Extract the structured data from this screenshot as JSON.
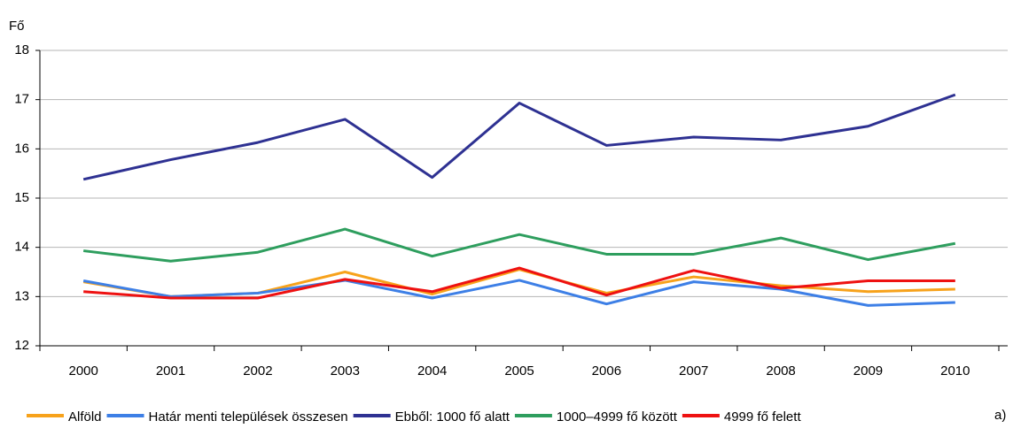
{
  "chart_data": {
    "type": "line",
    "y_label": "Fő",
    "note": "a)",
    "categories": [
      "2000",
      "2001",
      "2002",
      "2003",
      "2004",
      "2005",
      "2006",
      "2007",
      "2008",
      "2009",
      "2010"
    ],
    "series": [
      {
        "name": "Alföld",
        "color": "#f7a21b",
        "values": [
          13.3,
          13.0,
          13.07,
          13.5,
          13.05,
          13.55,
          13.07,
          13.4,
          13.22,
          13.1,
          13.15
        ]
      },
      {
        "name": "Határ menti települések összesen",
        "color": "#3d7fe6",
        "values": [
          13.32,
          13.0,
          13.07,
          13.33,
          12.97,
          13.33,
          12.85,
          13.3,
          13.15,
          12.82,
          12.88
        ]
      },
      {
        "name": "Ebből: 1000 fő alatt",
        "color": "#2e3192",
        "values": [
          15.38,
          15.78,
          16.13,
          16.6,
          15.42,
          16.93,
          16.07,
          16.24,
          16.18,
          16.46,
          17.1
        ]
      },
      {
        "name": "1000–4999 fő között",
        "color": "#2e9e5e",
        "values": [
          13.93,
          13.72,
          13.9,
          14.37,
          13.82,
          14.26,
          13.86,
          13.86,
          14.19,
          13.75,
          14.08
        ]
      },
      {
        "name": "4999 fő felett",
        "color": "#ee1111",
        "values": [
          13.1,
          12.97,
          12.97,
          13.35,
          13.1,
          13.58,
          13.03,
          13.53,
          13.17,
          13.32,
          13.32
        ]
      }
    ],
    "ylim": [
      12,
      18
    ],
    "yticks": [
      12,
      13,
      14,
      15,
      16,
      17,
      18
    ],
    "grid": true,
    "legend": "bottom"
  }
}
